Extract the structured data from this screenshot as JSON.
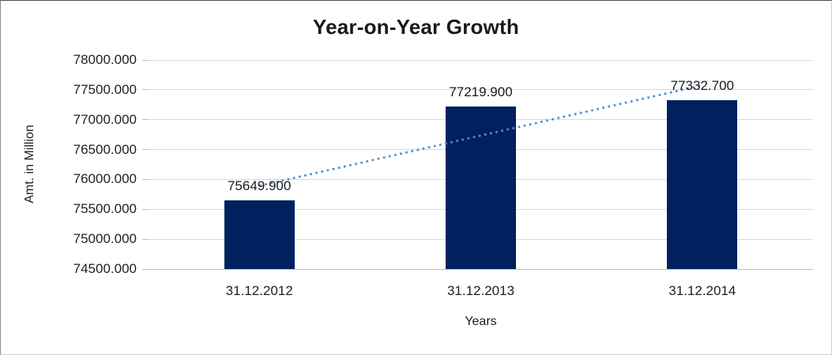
{
  "chart_data": {
    "type": "bar",
    "title": "Year-on-Year Growth",
    "xlabel": "Years",
    "ylabel": "Amt. in Million",
    "categories": [
      "31.12.2012",
      "31.12.2013",
      "31.12.2014"
    ],
    "values": [
      75649.9,
      77219.9,
      77332.7
    ],
    "data_labels": [
      "75649.900",
      "77219.900",
      "77332.700"
    ],
    "ylim": [
      74500,
      78000
    ],
    "ytick_step": 500,
    "ytick_labels": [
      "78000.000",
      "77500.000",
      "77000.000",
      "76500.000",
      "76000.000",
      "75500.000",
      "75000.000",
      "74500.000"
    ],
    "grid": true,
    "legend": "none",
    "trendline": {
      "kind": "linear",
      "style": "dotted"
    },
    "colors": {
      "bar": "#00215E",
      "gridline": "#D9D9D9",
      "axis_line": "#BFBFBF",
      "trendline": "#4E8ED2",
      "text": "#1A1A1A"
    }
  }
}
